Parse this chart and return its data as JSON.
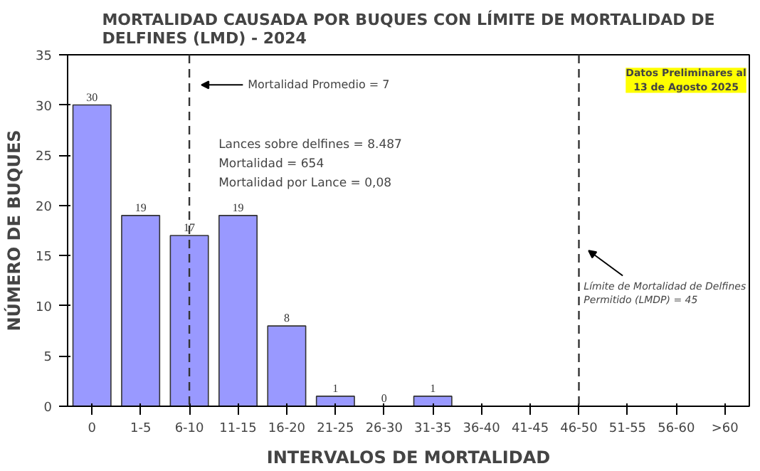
{
  "chart_data": {
    "type": "bar",
    "title": "MORTALIDAD CAUSADA POR BUQUES CON LÍMITE DE MORTALIDAD DE DELFINES (LMD) - 2024",
    "xlabel": "INTERVALOS DE MORTALIDAD",
    "ylabel": "NÚMERO DE BUQUES",
    "categories": [
      "0",
      "1-5",
      "6-10",
      "11-15",
      "16-20",
      "21-25",
      "26-30",
      "31-35",
      "36-40",
      "41-45",
      "46-50",
      "51-55",
      "56-60",
      ">60"
    ],
    "values": [
      30,
      19,
      17,
      19,
      8,
      1,
      0,
      1,
      0,
      0,
      0,
      0,
      0,
      0
    ],
    "value_labels": [
      "30",
      "19",
      "17",
      "19",
      "8",
      "1",
      "0",
      "1",
      null,
      null,
      null,
      null,
      null,
      null
    ],
    "color": "#9999ff",
    "ylim": [
      0,
      35
    ],
    "yticks": [
      0,
      5,
      10,
      15,
      20,
      25,
      30,
      35
    ],
    "grid": false,
    "ref_lines": [
      {
        "axis": "x",
        "value": "6-10",
        "label": "Mortalidad Promedio = 7",
        "line_style": "dashed",
        "color": "#333333"
      },
      {
        "axis": "x",
        "value": "46-50",
        "label": "Límite de Mortalidad de Delfines Permitido (LMDP) = 45",
        "line_style": "dashed",
        "color": "#333333"
      }
    ],
    "annotations": [
      "Datos Preliminares al 13 de Agosto 2025",
      "Lances sobre delfines = 8.487",
      "Mortalidad                  =     654",
      "Mortalidad por Lance  =  0,08"
    ]
  }
}
